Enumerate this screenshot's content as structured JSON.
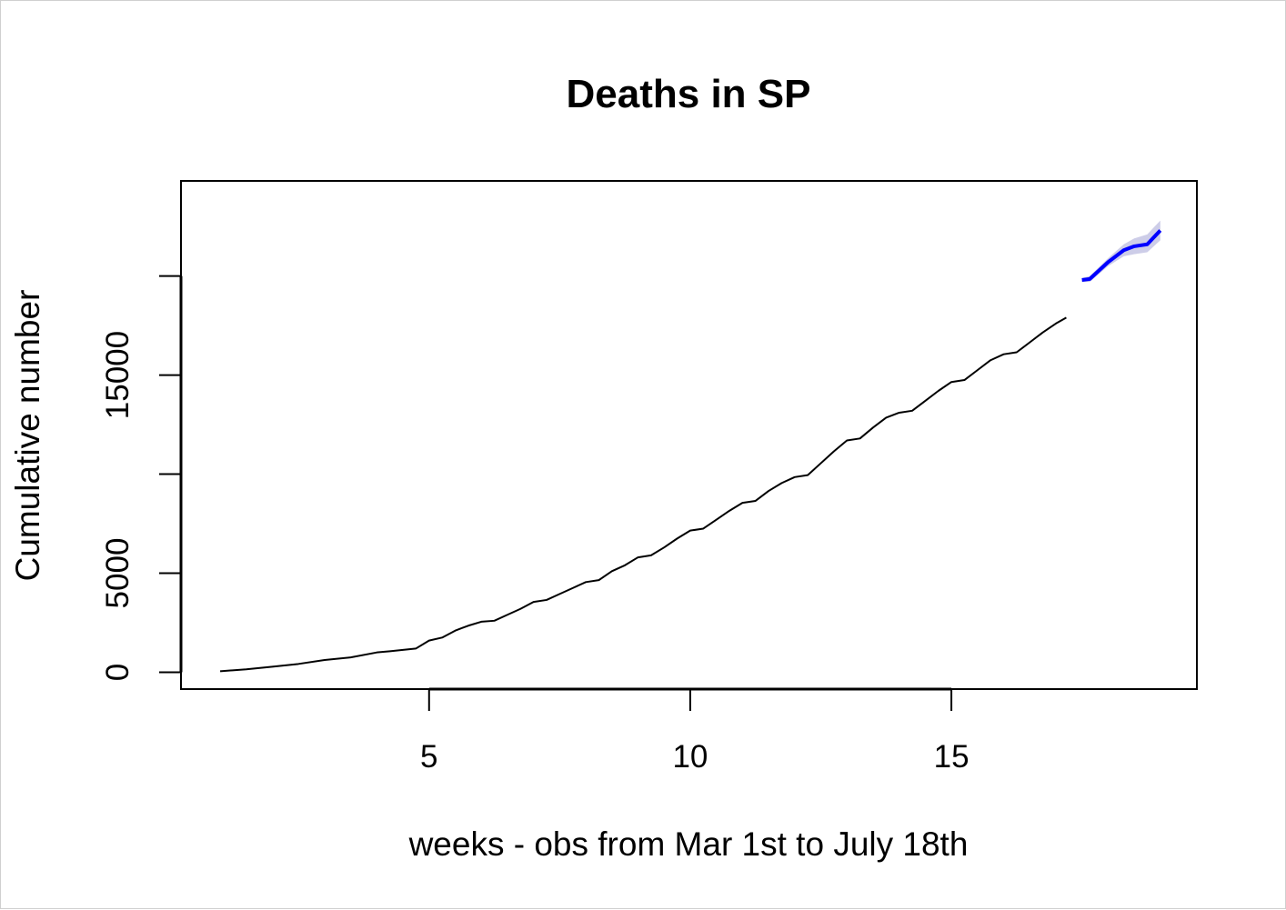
{
  "chart_data": {
    "type": "line",
    "title": "Deaths in SP",
    "xlabel": "weeks - obs from Mar 1st to July 18th",
    "ylabel": "Cumulative number",
    "xlim": [
      0.25,
      19.7
    ],
    "ylim": [
      -850,
      24800
    ],
    "x_ticks": [
      5,
      10,
      15
    ],
    "x_tick_labels": [
      "5",
      "10",
      "15"
    ],
    "y_ticks": [
      0,
      5000,
      10000,
      15000,
      20000
    ],
    "y_tick_labels": [
      "0",
      "5000",
      "",
      "15000",
      ""
    ],
    "grid": false,
    "legend": "none",
    "series": [
      {
        "role": "observed",
        "color": "#000000",
        "x": [
          1,
          1.5,
          2,
          2.5,
          3,
          3.5,
          4,
          4.25,
          4.5,
          4.75,
          5,
          5.25,
          5.5,
          5.75,
          6,
          6.25,
          6.5,
          6.75,
          7,
          7.25,
          7.5,
          7.75,
          8,
          8.25,
          8.5,
          8.75,
          9,
          9.25,
          9.5,
          9.75,
          10,
          10.25,
          10.5,
          10.75,
          11,
          11.25,
          11.5,
          11.75,
          12,
          12.25,
          12.5,
          12.75,
          13,
          13.25,
          13.5,
          13.75,
          14,
          14.25,
          14.5,
          14.75,
          15,
          15.25,
          15.5,
          15.75,
          16,
          16.25,
          16.5,
          16.75,
          17,
          17.2
        ],
        "values": [
          50,
          150,
          280,
          420,
          620,
          750,
          1000,
          1060,
          1130,
          1200,
          1600,
          1750,
          2100,
          2350,
          2550,
          2600,
          2900,
          3200,
          3550,
          3650,
          3950,
          4250,
          4550,
          4650,
          5100,
          5400,
          5800,
          5900,
          6300,
          6750,
          7150,
          7250,
          7700,
          8150,
          8550,
          8650,
          9150,
          9550,
          9850,
          9950,
          10550,
          11150,
          11700,
          11800,
          12350,
          12850,
          13100,
          13200,
          13700,
          14200,
          14650,
          14750,
          15250,
          15750,
          16050,
          16150,
          16650,
          17150,
          17600,
          17900
        ]
      },
      {
        "role": "forecast",
        "color": "#0000ff",
        "band_color": "#c8c8e6",
        "x": [
          17.5,
          17.65,
          18,
          18.3,
          18.5,
          18.75,
          19
        ],
        "values": [
          19800,
          19850,
          20700,
          21300,
          21500,
          21600,
          22300
        ],
        "lower": [
          19700,
          19700,
          20500,
          21000,
          21100,
          21200,
          21800
        ],
        "upper": [
          19900,
          20000,
          20900,
          21600,
          21900,
          22100,
          22800
        ]
      }
    ]
  }
}
